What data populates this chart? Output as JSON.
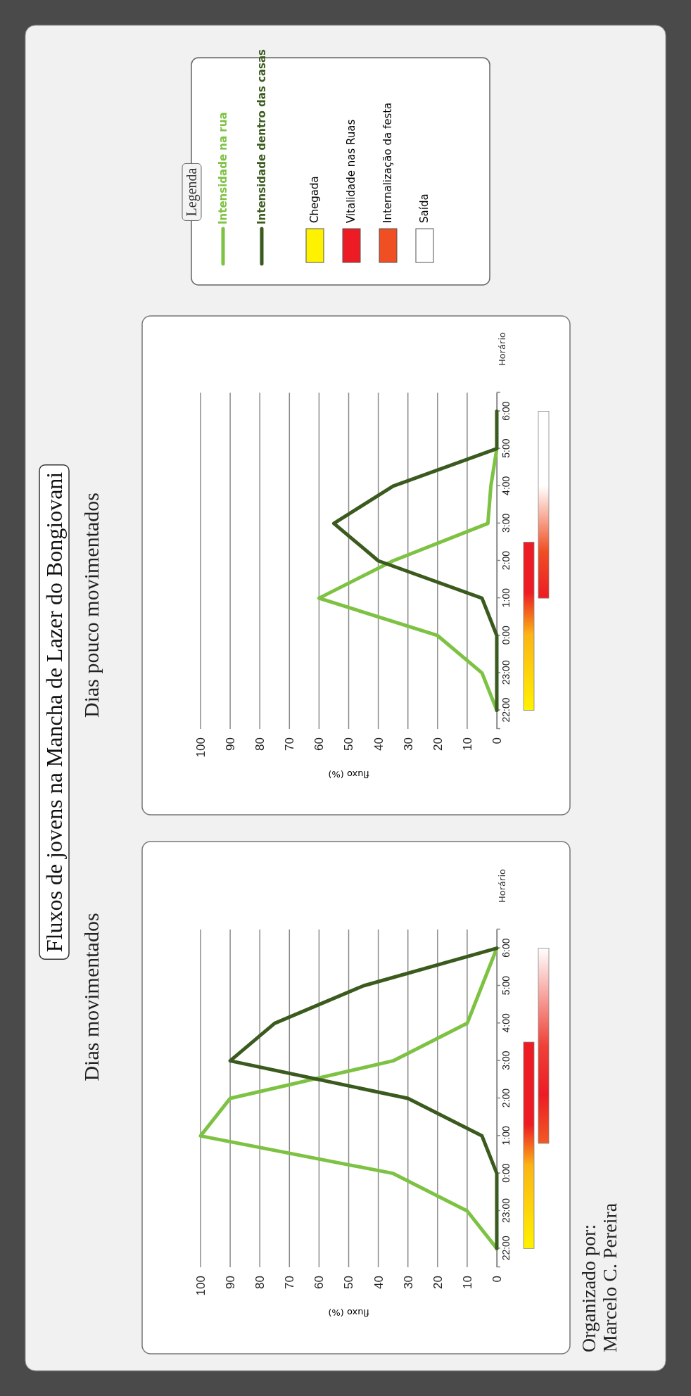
{
  "chart_data": [
    {
      "type": "line",
      "orientation": "horizontal",
      "title": "Fluxos de jovens na Mancha de Lazer do Bongiovani",
      "subtitle": "Dias movimentados",
      "xlabel": "fluxo (%)",
      "ylabel": "Horário",
      "legend_title": "Legenda",
      "legend": "top",
      "grid": "x",
      "categories": [
        "6:00",
        "5:00",
        "4:00",
        "3:00",
        "2:00",
        "1:00",
        "0:00",
        "23:00",
        "22:00"
      ],
      "xlim": [
        100,
        0
      ],
      "xticks": [
        100,
        90,
        80,
        70,
        60,
        50,
        40,
        30,
        20,
        10,
        0
      ],
      "series": [
        {
          "name": "Intensidade na rua",
          "color": "#7dc242",
          "values": [
            0,
            5,
            10,
            35,
            90,
            100,
            35,
            10,
            0
          ]
        },
        {
          "name": "Intensidade dentro das casas",
          "color": "#3b5a1e",
          "values": [
            0,
            45,
            75,
            90,
            30,
            5,
            0,
            0,
            0
          ]
        }
      ],
      "annotations": [
        "Organizado por:\nMarcelo C. Pereira",
        "Chegada",
        "Vitalidade nas Ruas",
        "Internalização da festa",
        "Saída"
      ]
    },
    {
      "type": "line",
      "orientation": "horizontal",
      "subtitle": "Dias pouco movimentados",
      "xlabel": "fluxo (%)",
      "ylabel": "Horário",
      "grid": "x",
      "categories": [
        "6:00",
        "5:00",
        "4:00",
        "3:00",
        "2:00",
        "1:00",
        "0:00",
        "23:00",
        "22:00"
      ],
      "xlim": [
        100,
        0
      ],
      "xticks": [
        100,
        90,
        80,
        70,
        60,
        50,
        40,
        30,
        20,
        10,
        0
      ],
      "series": [
        {
          "color": "#7dc242",
          "values": [
            null,
            0,
            2,
            3,
            35,
            60,
            20,
            5,
            0
          ]
        },
        {
          "color": "#3b5a1e",
          "values": [
            0,
            0,
            35,
            55,
            40,
            5,
            0,
            0,
            0
          ]
        }
      ]
    }
  ]
}
